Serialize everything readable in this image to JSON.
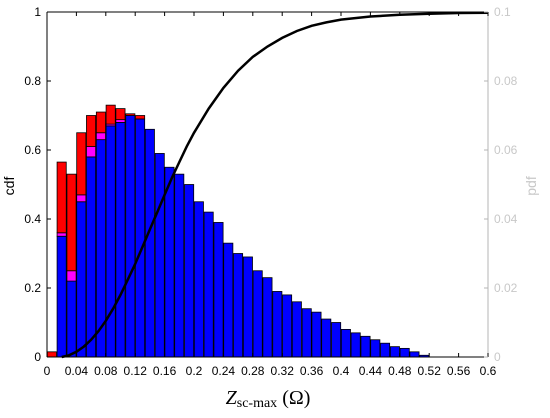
{
  "chart_data": {
    "type": "bar",
    "xlabel_main": "Z",
    "xlabel_sub": "sc-max",
    "xlabel_unit": " (Ω)",
    "ylabel_left": "cdf",
    "ylabel_right": "pdf",
    "xlim": [
      0,
      0.6
    ],
    "ylim_left": [
      0,
      1
    ],
    "ylim_right": [
      0,
      0.1
    ],
    "x_ticks": [
      "0",
      "0.04",
      "0.08",
      "0.12",
      "0.16",
      "0.2",
      "0.24",
      "0.28",
      "0.32",
      "0.36",
      "0.4",
      "0.44",
      "0.48",
      "0.52",
      "0.56",
      "0.6"
    ],
    "y_ticks_left": [
      "0",
      "0.2",
      "0.4",
      "0.6",
      "0.8",
      "1"
    ],
    "y_ticks_right": [
      "0",
      "0.02",
      "0.04",
      "0.06",
      "0.08",
      "0.1"
    ],
    "bin_width": 0.0133,
    "bins_start": [
      0.0,
      0.0133,
      0.0267,
      0.04,
      0.0533,
      0.0667,
      0.08,
      0.0933,
      0.1067,
      0.12,
      0.1333,
      0.1467,
      0.16,
      0.1733,
      0.1867,
      0.2,
      0.2133,
      0.2267,
      0.24,
      0.2533,
      0.2667,
      0.28,
      0.2933,
      0.3067,
      0.32,
      0.3333,
      0.3467,
      0.36,
      0.3733,
      0.3867,
      0.4,
      0.4133,
      0.4267,
      0.44,
      0.4533,
      0.4667,
      0.48,
      0.4933,
      0.5067,
      0.52,
      0.5333,
      0.5467,
      0.56,
      0.5733,
      0.5867
    ],
    "series": [
      {
        "name": "blue",
        "color": "#0000ff",
        "values": [
          0.0,
          0.035,
          0.022,
          0.045,
          0.058,
          0.063,
          0.067,
          0.068,
          0.07,
          0.069,
          0.066,
          0.059,
          0.055,
          0.053,
          0.05,
          0.045,
          0.042,
          0.039,
          0.033,
          0.03,
          0.029,
          0.025,
          0.023,
          0.019,
          0.018,
          0.016,
          0.014,
          0.013,
          0.011,
          0.01,
          0.008,
          0.007,
          0.006,
          0.005,
          0.004,
          0.003,
          0.0025,
          0.0015,
          0.0005,
          0,
          0,
          0,
          0,
          0,
          0
        ]
      },
      {
        "name": "magenta",
        "color": "#ff00ff",
        "values": [
          0.0,
          0.001,
          0.003,
          0.002,
          0.003,
          0.002,
          0.0005,
          0.0008,
          0,
          0,
          0,
          0,
          0,
          0,
          0,
          0,
          0,
          0,
          0,
          0,
          0,
          0,
          0,
          0,
          0,
          0,
          0,
          0,
          0,
          0,
          0,
          0,
          0,
          0,
          0,
          0,
          0,
          0,
          0,
          0,
          0,
          0,
          0,
          0,
          0
        ]
      },
      {
        "name": "red",
        "color": "#ff0000",
        "values": [
          0.0015,
          0.0205,
          0.028,
          0.018,
          0.009,
          0.006,
          0.0055,
          0.0032,
          0.0005,
          0.001,
          0,
          0,
          0,
          0,
          0,
          0,
          0,
          0,
          0,
          0,
          0,
          0,
          0,
          0,
          0,
          0,
          0,
          0,
          0,
          0,
          0,
          0,
          0,
          0,
          0,
          0,
          0,
          0,
          0,
          0,
          0,
          0,
          0,
          0,
          0
        ]
      }
    ],
    "cdf_curve": {
      "color": "#000000",
      "x": [
        0.02,
        0.03,
        0.04,
        0.05,
        0.06,
        0.07,
        0.08,
        0.09,
        0.1,
        0.11,
        0.12,
        0.13,
        0.14,
        0.15,
        0.16,
        0.17,
        0.18,
        0.19,
        0.2,
        0.22,
        0.24,
        0.26,
        0.28,
        0.3,
        0.32,
        0.34,
        0.36,
        0.38,
        0.4,
        0.44,
        0.48,
        0.52,
        0.56,
        0.6
      ],
      "y": [
        0.0,
        0.005,
        0.015,
        0.03,
        0.05,
        0.075,
        0.105,
        0.14,
        0.18,
        0.225,
        0.27,
        0.32,
        0.37,
        0.42,
        0.47,
        0.52,
        0.565,
        0.61,
        0.65,
        0.72,
        0.78,
        0.83,
        0.87,
        0.9,
        0.925,
        0.945,
        0.96,
        0.97,
        0.978,
        0.987,
        0.992,
        0.995,
        0.997,
        0.998
      ]
    }
  }
}
